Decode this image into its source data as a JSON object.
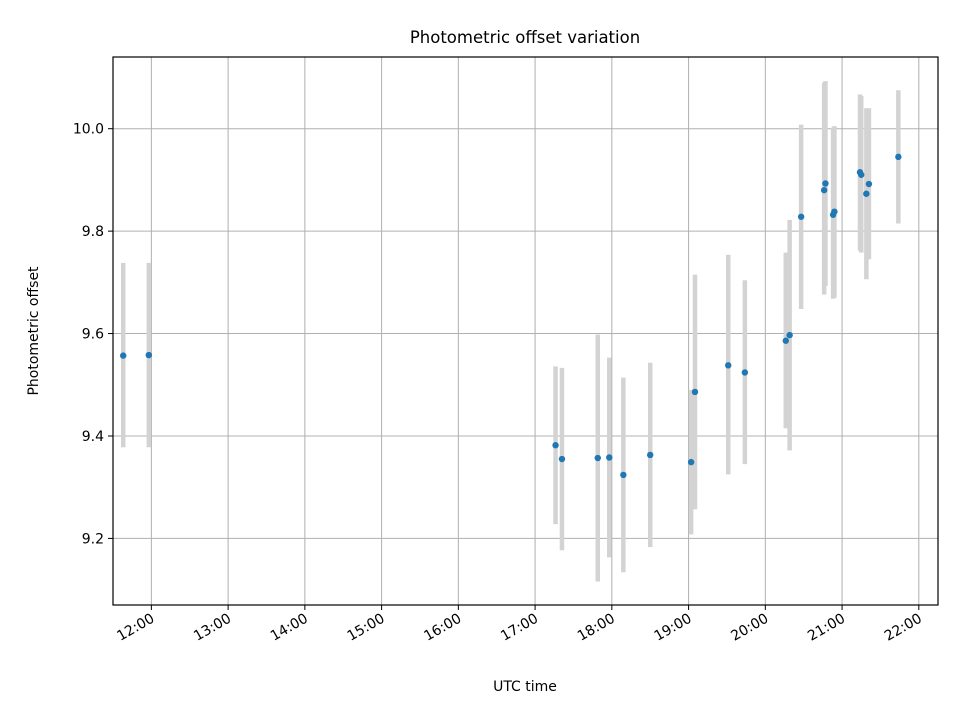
{
  "chart_data": {
    "type": "scatter",
    "title": "Photometric offset variation",
    "xlabel": "UTC time",
    "ylabel": "Photometric offset",
    "xlim": [
      "11:30",
      "22:15"
    ],
    "ylim": [
      9.07,
      10.14
    ],
    "x_ticks": [
      "12:00",
      "13:00",
      "14:00",
      "15:00",
      "16:00",
      "17:00",
      "18:00",
      "19:00",
      "20:00",
      "21:00",
      "22:00"
    ],
    "y_ticks": [
      9.2,
      9.4,
      9.6,
      9.8,
      10.0
    ],
    "y_tick_labels": [
      "9.2",
      "9.4",
      "9.6",
      "9.8",
      "10.0"
    ],
    "grid": true,
    "point_color": "#1f77b4",
    "errorbar_color": "#d3d3d3",
    "series": [
      {
        "points": [
          {
            "x": "11:38",
            "y": 9.557,
            "lo": 9.378,
            "hi": 9.738
          },
          {
            "x": "11:58",
            "y": 9.558,
            "lo": 9.378,
            "hi": 9.738
          },
          {
            "x": "17:16",
            "y": 9.382,
            "lo": 9.228,
            "hi": 9.536
          },
          {
            "x": "17:21",
            "y": 9.355,
            "lo": 9.177,
            "hi": 9.533
          },
          {
            "x": "17:49",
            "y": 9.357,
            "lo": 9.116,
            "hi": 9.598
          },
          {
            "x": "17:58",
            "y": 9.358,
            "lo": 9.163,
            "hi": 9.553
          },
          {
            "x": "18:09",
            "y": 9.324,
            "lo": 9.134,
            "hi": 9.514
          },
          {
            "x": "18:30",
            "y": 9.363,
            "lo": 9.183,
            "hi": 9.543
          },
          {
            "x": "19:02",
            "y": 9.349,
            "lo": 9.208,
            "hi": 9.49
          },
          {
            "x": "19:05",
            "y": 9.486,
            "lo": 9.257,
            "hi": 9.715
          },
          {
            "x": "19:31",
            "y": 9.538,
            "lo": 9.325,
            "hi": 9.754
          },
          {
            "x": "19:44",
            "y": 9.524,
            "lo": 9.345,
            "hi": 9.704
          },
          {
            "x": "20:16",
            "y": 9.586,
            "lo": 9.415,
            "hi": 9.758
          },
          {
            "x": "20:19",
            "y": 9.597,
            "lo": 9.372,
            "hi": 9.822
          },
          {
            "x": "20:28",
            "y": 9.828,
            "lo": 9.648,
            "hi": 10.008
          },
          {
            "x": "20:46",
            "y": 9.88,
            "lo": 9.676,
            "hi": 10.09
          },
          {
            "x": "20:47",
            "y": 9.893,
            "lo": 9.693,
            "hi": 10.093
          },
          {
            "x": "20:53",
            "y": 9.832,
            "lo": 9.668,
            "hi": 10.002
          },
          {
            "x": "20:54",
            "y": 9.838,
            "lo": 9.67,
            "hi": 10.005
          },
          {
            "x": "21:14",
            "y": 9.915,
            "lo": 9.762,
            "hi": 10.067
          },
          {
            "x": "21:15",
            "y": 9.91,
            "lo": 9.758,
            "hi": 10.064
          },
          {
            "x": "21:19",
            "y": 9.873,
            "lo": 9.706,
            "hi": 10.04
          },
          {
            "x": "21:21",
            "y": 9.892,
            "lo": 9.745,
            "hi": 10.04
          },
          {
            "x": "21:44",
            "y": 9.945,
            "lo": 9.815,
            "hi": 10.075
          }
        ]
      }
    ]
  }
}
